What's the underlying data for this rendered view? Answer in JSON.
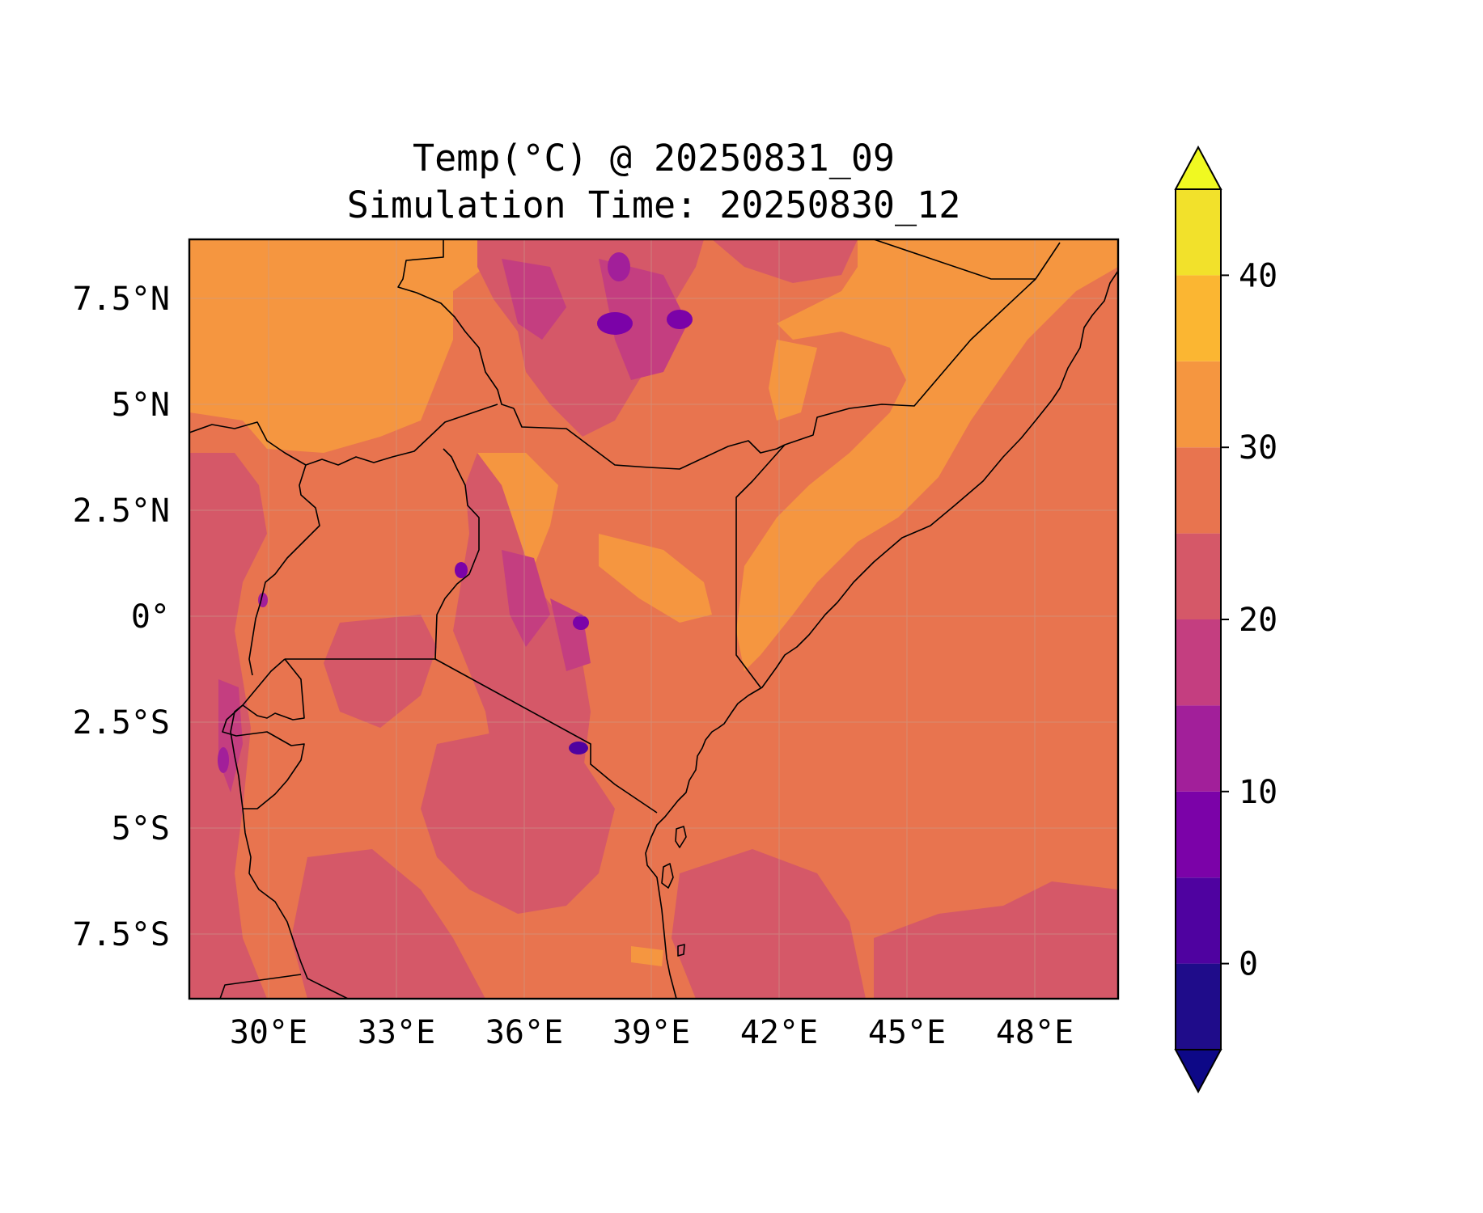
{
  "title": {
    "line1": "Temp(°C) @ 20250831_09",
    "line2": "Simulation Time: 20250830_12"
  },
  "map": {
    "lon_range": [
      27.8,
      49.6
    ],
    "lat_range": [
      -9.0,
      8.9
    ],
    "lon_ticks": [
      "30°E",
      "33°E",
      "36°E",
      "39°E",
      "42°E",
      "45°E",
      "48°E"
    ],
    "lat_ticks": [
      "7.5°N",
      "5°N",
      "2.5°N",
      "0°",
      "2.5°S",
      "5°S",
      "7.5°S"
    ],
    "field": "Temp(°C)",
    "dominant_range_c": [
      25,
      30
    ],
    "cool_highlands_min_c": 5,
    "gridlines": true
  },
  "colorbar": {
    "ticks": [
      "0",
      "10",
      "20",
      "30",
      "40"
    ],
    "levels": [
      -5,
      0,
      5,
      10,
      15,
      20,
      25,
      30,
      35,
      40,
      45
    ],
    "colors": [
      "#1f0c8a",
      "#4f02a0",
      "#7b02a8",
      "#a21f9a",
      "#c43e80",
      "#d55868",
      "#e8744f",
      "#f59640",
      "#fbb632",
      "#f2e12b"
    ],
    "under_color": "#0d0887",
    "over_color": "#f0f921",
    "extend": "both"
  }
}
